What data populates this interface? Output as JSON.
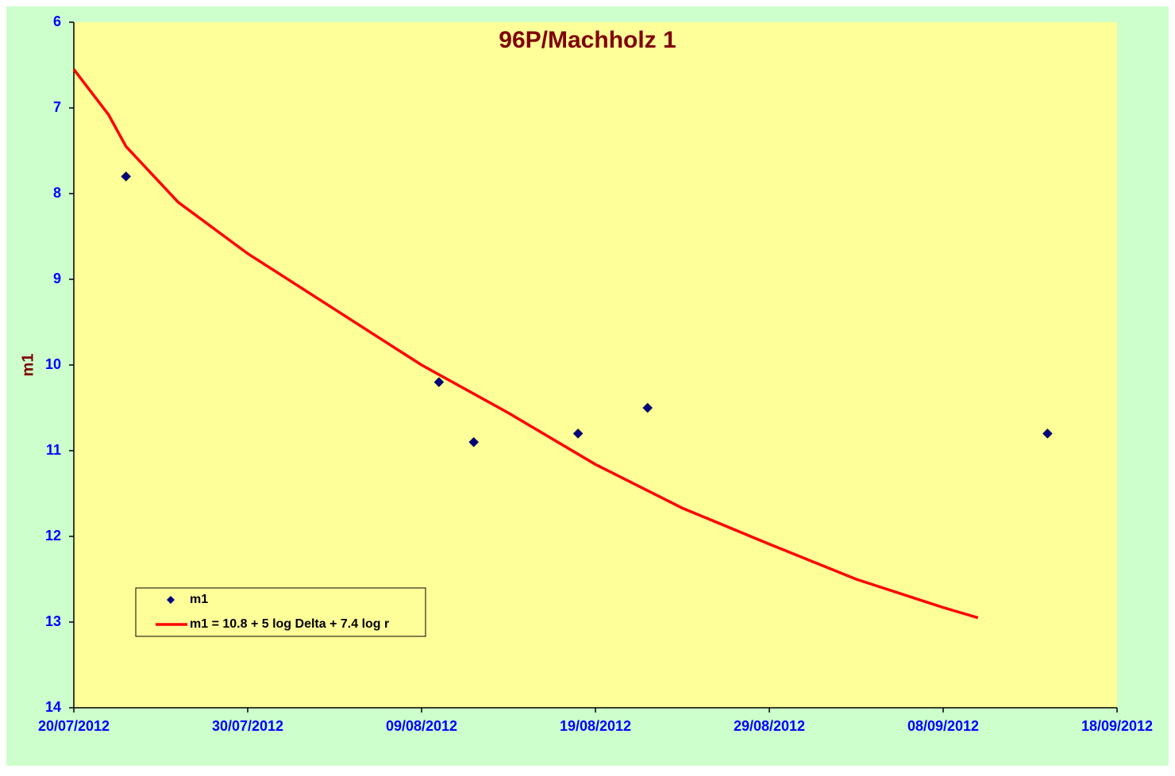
{
  "chart_data": {
    "type": "scatter",
    "title": "96P/Machholz 1",
    "ylabel": "m1",
    "xlim": [
      "20/07/2012",
      "18/09/2012"
    ],
    "xticks": [
      "20/07/2012",
      "30/07/2012",
      "09/08/2012",
      "19/08/2012",
      "29/08/2012",
      "08/09/2012",
      "18/09/2012"
    ],
    "ylim": [
      6,
      14
    ],
    "yticks": [
      6,
      7,
      8,
      9,
      10,
      11,
      12,
      13,
      14
    ],
    "y_inverted": true,
    "legend": "lower-left",
    "series": [
      {
        "name": "m1",
        "type": "scatter",
        "color": "#000080",
        "x": [
          "23/07/2012",
          "10/08/2012",
          "12/08/2012",
          "18/08/2012",
          "22/08/2012",
          "14/09/2012"
        ],
        "values": [
          7.8,
          10.2,
          10.9,
          10.8,
          10.5,
          10.8
        ]
      },
      {
        "name": "m1 = 10.8 + 5 log Delta + 7.4 log r",
        "type": "line",
        "color": "#ff0000",
        "x": [
          "20/07/2012",
          "22/07/2012",
          "23/07/2012",
          "26/07/2012",
          "30/07/2012",
          "04/08/2012",
          "09/08/2012",
          "14/08/2012",
          "19/08/2012",
          "24/08/2012",
          "29/08/2012",
          "03/09/2012",
          "08/09/2012",
          "10/09/2012"
        ],
        "values": [
          6.55,
          7.08,
          7.45,
          8.1,
          8.7,
          9.35,
          10.0,
          10.56,
          11.16,
          11.67,
          12.09,
          12.5,
          12.83,
          12.95
        ]
      }
    ]
  }
}
